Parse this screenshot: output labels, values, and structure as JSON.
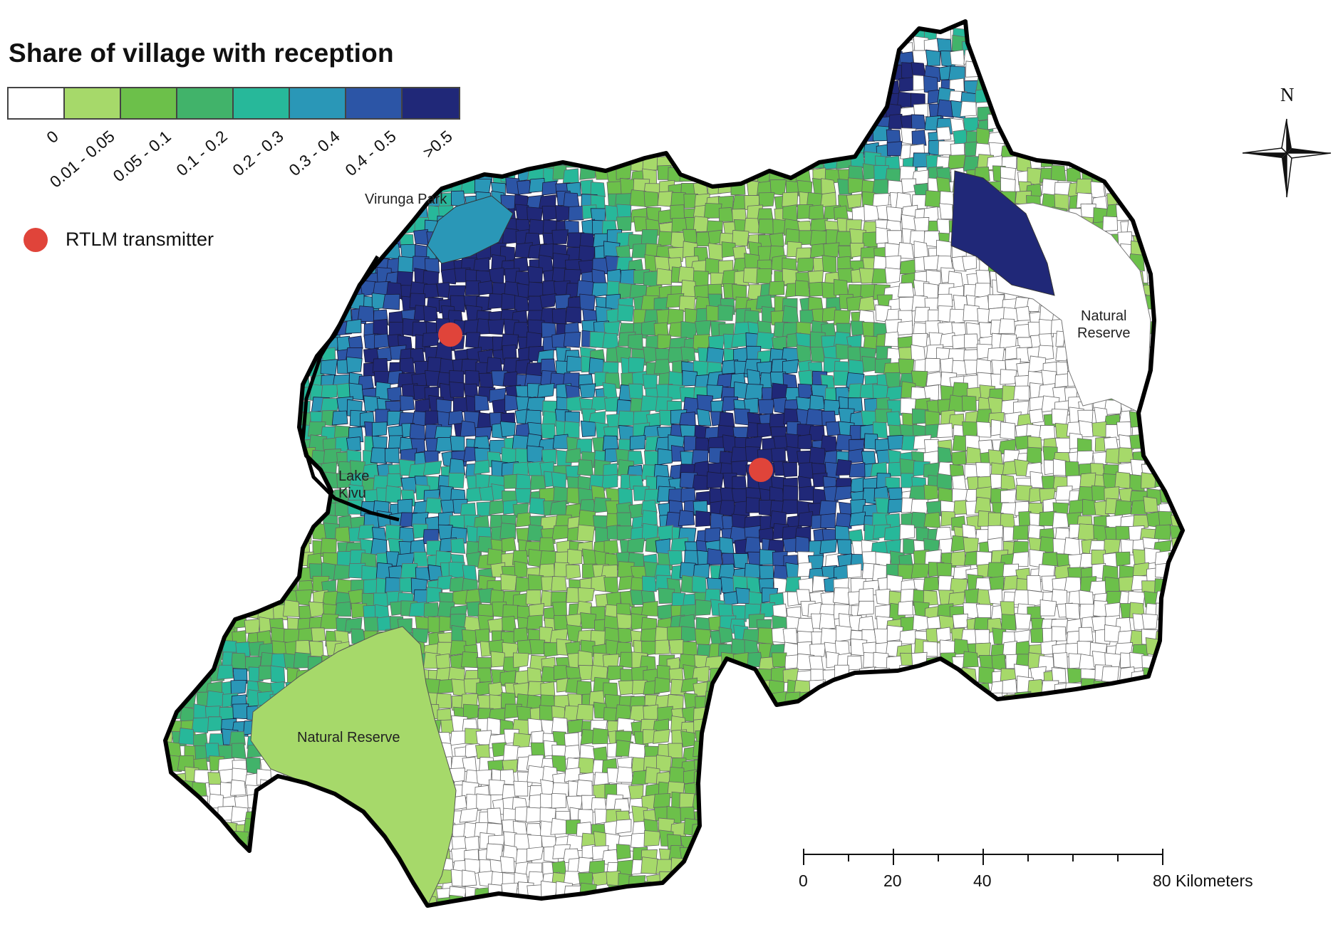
{
  "legend": {
    "title": "Share of village with reception",
    "classes": [
      {
        "label": "0",
        "color": "#ffffff"
      },
      {
        "label": "0.01 - 0.05",
        "color": "#a6d96a"
      },
      {
        "label": "0.05 - 0.1",
        "color": "#6cc04a"
      },
      {
        "label": "0.1 - 0.2",
        "color": "#41b36a"
      },
      {
        "label": "0.2 - 0.3",
        "color": "#27b89a"
      },
      {
        "label": "0.3 - 0.4",
        "color": "#2a97b7"
      },
      {
        "label": "0.4 - 0.5",
        "color": "#2c55a6"
      },
      {
        "label": ">0.5",
        "color": "#202878"
      }
    ],
    "transmitter_label": "RTLM transmitter",
    "transmitter_color": "#e0443a"
  },
  "places": {
    "virunga": "Virunga Park",
    "lake_kivu_line1": "Lake",
    "lake_kivu_line2": "Kivu",
    "reserve_east_line1": "Natural",
    "reserve_east_line2": "Reserve",
    "reserve_south": "Natural Reserve"
  },
  "compass": {
    "north_label": "N"
  },
  "scale_bar": {
    "ticks": [
      "0",
      "20",
      "40",
      "80 Kilometers"
    ]
  },
  "transmitters": [
    {
      "name": "transmitter-west"
    },
    {
      "name": "transmitter-central"
    }
  ]
}
